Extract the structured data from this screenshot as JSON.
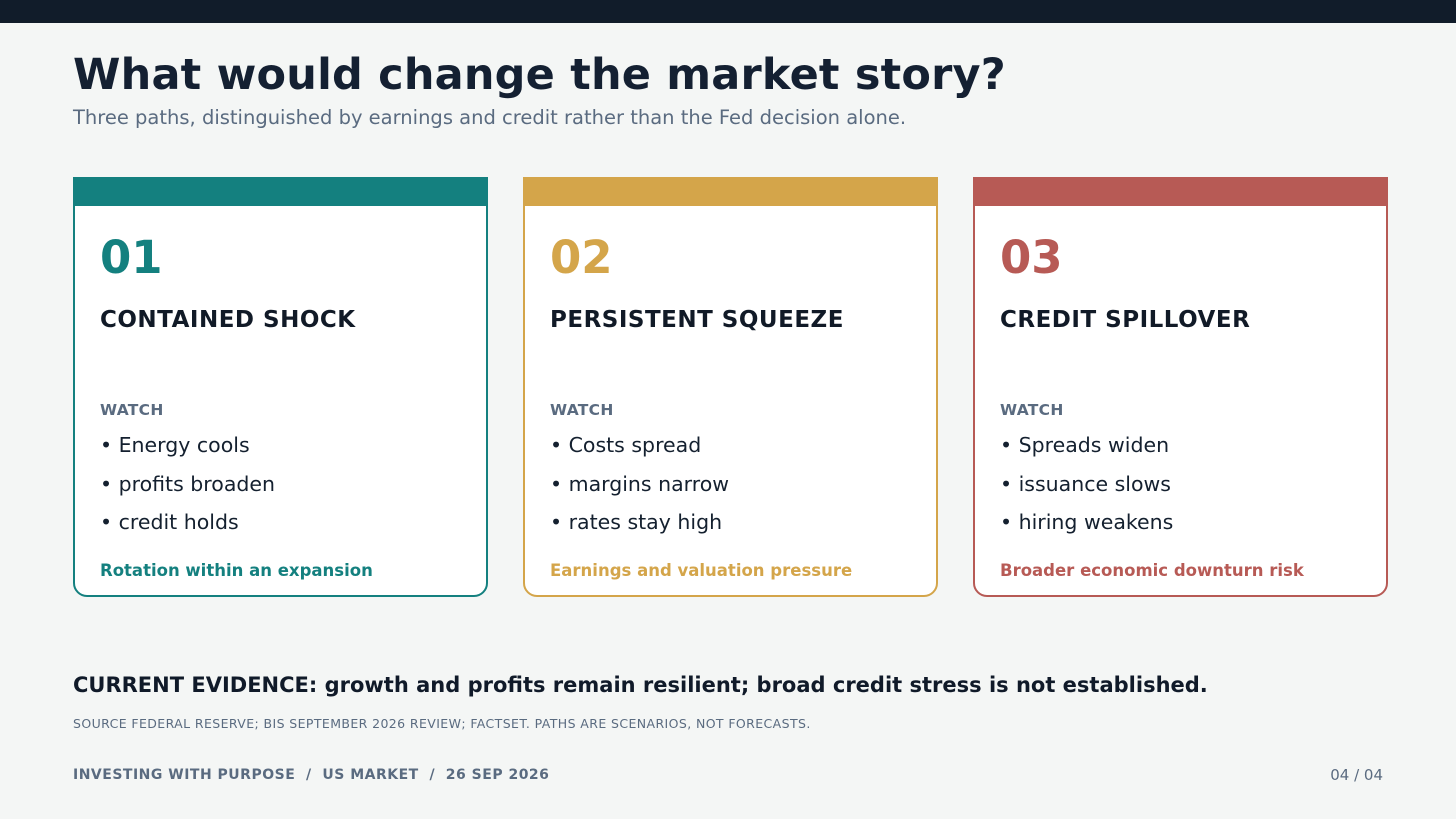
{
  "header": {
    "title": "What would change the market story?",
    "subtitle": "Three paths, distinguished by earnings and credit rather than the Fed decision alone."
  },
  "scenarios": [
    {
      "number": "01",
      "name": "CONTAINED SHOCK",
      "watch_label": "WATCH",
      "signals": [
        "• Energy cools",
        "• profits broaden",
        "• credit holds"
      ],
      "outcome": "Rotation within an expansion",
      "color": "#14807f"
    },
    {
      "number": "02",
      "name": "PERSISTENT SQUEEZE",
      "watch_label": "WATCH",
      "signals": [
        "• Costs spread",
        "• margins narrow",
        "• rates stay high"
      ],
      "outcome": "Earnings and valuation pressure",
      "color": "#d4a54a"
    },
    {
      "number": "03",
      "name": "CREDIT SPILLOVER",
      "watch_label": "WATCH",
      "signals": [
        "• Spreads widen",
        "• issuance slows",
        "• hiring weakens"
      ],
      "outcome": "Broader economic downturn risk",
      "color": "#b75a55"
    }
  ],
  "evidence": "CURRENT EVIDENCE: growth and profits remain resilient; broad credit stress is not established.",
  "source": "SOURCE  FEDERAL RESERVE; BIS SEPTEMBER 2026 REVIEW; FACTSET. PATHS ARE SCENARIOS, NOT FORECASTS.",
  "footer": {
    "left": "INVESTING WITH PURPOSE  /  US MARKET  /  26 SEP 2026",
    "page": "04 / 04"
  },
  "colors": {
    "top_bar": "#111c2a",
    "background": "#f4f6f5"
  }
}
